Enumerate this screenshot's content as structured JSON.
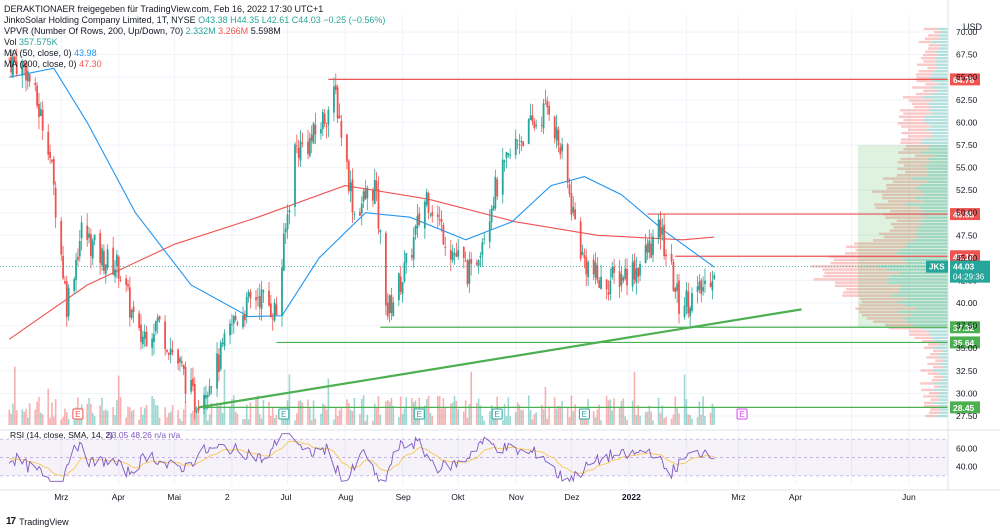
{
  "header": {
    "share_line": "DERAKTIONAER freigegeben für TradingView.com, Feb 16, 2022 17:30 UTC+1",
    "symbol_line": "JinkoSolar Holding Company Limited, 1T, NYSE",
    "ohlc": {
      "o": "O43.38",
      "h": "H44.35",
      "l": "L42.61",
      "c": "C44.03",
      "chg": "−0.25 (−0.56%)"
    },
    "vpvr": {
      "label": "VPVR (Number Of Rows, 200, Up/Down, 70)",
      "up": "2.332M",
      "down": "3.266M",
      "total": "5.598M"
    },
    "vol": {
      "label": "Vol",
      "value": "357.575K"
    },
    "ma50": {
      "label": "MA (50, close, 0)",
      "value": "43.98"
    },
    "ma200": {
      "label": "MA (200, close, 0)",
      "value": "47.30"
    }
  },
  "chart_data": {
    "type": "candlestick",
    "currency": "USD",
    "price_axis_ticks": [
      27.5,
      30,
      32.5,
      35,
      37.5,
      40,
      42.5,
      45,
      47.5,
      50,
      52.5,
      55,
      57.5,
      60,
      62.5,
      65,
      67.5,
      70
    ],
    "ylim": [
      26.5,
      72
    ],
    "time_axis_labels": [
      "Mrz",
      "Apr",
      "Mai",
      "2",
      "Jul",
      "Aug",
      "Sep",
      "Okt",
      "Nov",
      "Dez",
      "2022",
      "Mrz",
      "Apr",
      "Jun"
    ],
    "horizontal_levels": [
      {
        "value": 64.76,
        "label": "64.76",
        "color": "#ef5350"
      },
      {
        "value": 49.85,
        "label": "49.85",
        "color": "#ef5350"
      },
      {
        "value": 45.18,
        "label": "45.18",
        "color": "#ef5350"
      },
      {
        "value": 37.32,
        "label": "37.32",
        "color": "#4caf50"
      },
      {
        "value": 35.64,
        "label": "35.64",
        "color": "#4caf50"
      },
      {
        "value": 28.45,
        "label": "28.45",
        "color": "#4caf50"
      }
    ],
    "last_price": {
      "symbol": "JKS",
      "price": "44.03",
      "countdown": "04:29:36"
    },
    "price_path": [
      {
        "d": "2021-02-01",
        "p": 67
      },
      {
        "d": "2021-02-10",
        "p": 66
      },
      {
        "d": "2021-02-22",
        "p": 58
      },
      {
        "d": "2021-03-04",
        "p": 40
      },
      {
        "d": "2021-03-12",
        "p": 48
      },
      {
        "d": "2021-03-23",
        "p": 45
      },
      {
        "d": "2021-04-01",
        "p": 44
      },
      {
        "d": "2021-04-12",
        "p": 36
      },
      {
        "d": "2021-04-22",
        "p": 38
      },
      {
        "d": "2021-05-04",
        "p": 33
      },
      {
        "d": "2021-05-12",
        "p": 29
      },
      {
        "d": "2021-05-24",
        "p": 33
      },
      {
        "d": "2021-06-02",
        "p": 38
      },
      {
        "d": "2021-06-15",
        "p": 41
      },
      {
        "d": "2021-06-25",
        "p": 39
      },
      {
        "d": "2021-07-05",
        "p": 57
      },
      {
        "d": "2021-07-14",
        "p": 58
      },
      {
        "d": "2021-07-27",
        "p": 63
      },
      {
        "d": "2021-08-06",
        "p": 50
      },
      {
        "d": "2021-08-17",
        "p": 53
      },
      {
        "d": "2021-08-24",
        "p": 39
      },
      {
        "d": "2021-09-03",
        "p": 44
      },
      {
        "d": "2021-09-14",
        "p": 52
      },
      {
        "d": "2021-09-27",
        "p": 46
      },
      {
        "d": "2021-10-08",
        "p": 43
      },
      {
        "d": "2021-10-20",
        "p": 52
      },
      {
        "d": "2021-11-02",
        "p": 58
      },
      {
        "d": "2021-11-12",
        "p": 60
      },
      {
        "d": "2021-11-19",
        "p": 62
      },
      {
        "d": "2021-11-26",
        "p": 56
      },
      {
        "d": "2021-12-07",
        "p": 45
      },
      {
        "d": "2021-12-17",
        "p": 42
      },
      {
        "d": "2022-01-06",
        "p": 44
      },
      {
        "d": "2022-01-18",
        "p": 48
      },
      {
        "d": "2022-01-28",
        "p": 40
      },
      {
        "d": "2022-02-08",
        "p": 41
      },
      {
        "d": "2022-02-16",
        "p": 44.03
      }
    ],
    "ma50_path": [
      {
        "d": "2021-02-01",
        "p": 65
      },
      {
        "d": "2021-02-25",
        "p": 66
      },
      {
        "d": "2021-03-15",
        "p": 60
      },
      {
        "d": "2021-04-10",
        "p": 50
      },
      {
        "d": "2021-05-10",
        "p": 42
      },
      {
        "d": "2021-06-10",
        "p": 38.5
      },
      {
        "d": "2021-06-28",
        "p": 38.6
      },
      {
        "d": "2021-07-18",
        "p": 45
      },
      {
        "d": "2021-08-12",
        "p": 50
      },
      {
        "d": "2021-09-05",
        "p": 49.5
      },
      {
        "d": "2021-10-05",
        "p": 47
      },
      {
        "d": "2021-10-30",
        "p": 49
      },
      {
        "d": "2021-11-20",
        "p": 53
      },
      {
        "d": "2021-12-08",
        "p": 54
      },
      {
        "d": "2021-12-28",
        "p": 52
      },
      {
        "d": "2022-01-20",
        "p": 48
      },
      {
        "d": "2022-02-16",
        "p": 43.98
      }
    ],
    "ma200_path": [
      {
        "d": "2021-02-01",
        "p": 36
      },
      {
        "d": "2021-03-15",
        "p": 42
      },
      {
        "d": "2021-05-01",
        "p": 46.5
      },
      {
        "d": "2021-06-15",
        "p": 49.5
      },
      {
        "d": "2021-08-01",
        "p": 53
      },
      {
        "d": "2021-09-15",
        "p": 51.5
      },
      {
        "d": "2021-11-01",
        "p": 49
      },
      {
        "d": "2021-12-15",
        "p": 47.5
      },
      {
        "d": "2022-01-30",
        "p": 47
      },
      {
        "d": "2022-02-16",
        "p": 47.3
      }
    ],
    "trendline": {
      "from": {
        "d": "2021-05-14",
        "p": 28.45
      },
      "to": {
        "d": "2022-04-04",
        "p": 39.3
      }
    },
    "earnings_markers": [
      {
        "d": "2021-03-10",
        "label": "E"
      },
      {
        "d": "2021-06-29",
        "label": "E"
      },
      {
        "d": "2021-09-10",
        "label": "E"
      },
      {
        "d": "2021-10-22",
        "label": "E"
      },
      {
        "d": "2021-12-08",
        "label": "E"
      },
      {
        "d": "2022-03-03",
        "label": "E"
      }
    ],
    "rsi": {
      "label": "RSI (14, close, SMA, 14, 2)",
      "values": "53.05  48.26  n/a  n/a",
      "ticks": [
        40,
        60
      ],
      "band": [
        30,
        70
      ]
    }
  },
  "footer": {
    "brand": "TradingView"
  }
}
